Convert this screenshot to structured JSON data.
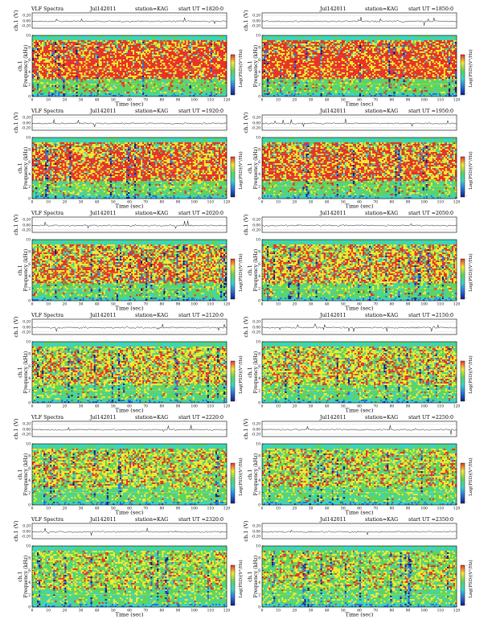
{
  "figure": {
    "panels": [
      {
        "label": "VLF Spectra",
        "date": "Jul142011",
        "station": "station=KAG",
        "start": "start  UT =1820:0",
        "red_density": 0.62,
        "yellow_density": 0.28
      },
      {
        "label": "",
        "date": "Jul142011",
        "station": "station=KAG",
        "start": "start  UT =1850:0",
        "red_density": 0.62,
        "yellow_density": 0.28
      },
      {
        "label": "VLF Spectra",
        "date": "Jul142011",
        "station": "station=KAG",
        "start": "start  UT =1920:0",
        "red_density": 0.52,
        "yellow_density": 0.32
      },
      {
        "label": "",
        "date": "Jul142011",
        "station": "station=KAG",
        "start": "start  UT =1950:0",
        "red_density": 0.5,
        "yellow_density": 0.33
      },
      {
        "label": "VLF Spectra",
        "date": "Jul142011",
        "station": "station=KAG",
        "start": "start  UT =2020:0",
        "red_density": 0.36,
        "yellow_density": 0.36
      },
      {
        "label": "",
        "date": "Jul142011",
        "station": "station=KAG",
        "start": "start  UT =2050:0",
        "red_density": 0.32,
        "yellow_density": 0.37
      },
      {
        "label": "VLF Spectra",
        "date": "Jul142011",
        "station": "station=KAG",
        "start": "start  UT =2120:0",
        "red_density": 0.22,
        "yellow_density": 0.38
      },
      {
        "label": "",
        "date": "Jul142011",
        "station": "station=KAG",
        "start": "start  UT =2150:0",
        "red_density": 0.22,
        "yellow_density": 0.38
      },
      {
        "label": "VLF Spectra",
        "date": "Jul142011",
        "station": "station=KAG",
        "start": "start  UT =2220:0",
        "red_density": 0.18,
        "yellow_density": 0.34
      },
      {
        "label": "",
        "date": "Jul142011",
        "station": "station=KAG",
        "start": "start  UT =2250:0",
        "red_density": 0.16,
        "yellow_density": 0.33
      },
      {
        "label": "VLF Spectra",
        "date": "Jul142011",
        "station": "station=KAG",
        "start": "start  UT =2320:0",
        "red_density": 0.12,
        "yellow_density": 0.3
      },
      {
        "label": "",
        "date": "Jul142011",
        "station": "station=KAG",
        "start": "start  UT =2350:0",
        "red_density": 0.12,
        "yellow_density": 0.3
      }
    ],
    "labels": {
      "ch_axis": "ch.1 (V)",
      "freq_axis_1": "ch.1",
      "freq_axis_2": "Frequency  (kHz)",
      "time_axis": "Time  (sec)",
      "colorbar": "Log(PSD)(V²/Hz)",
      "ch_ticks": [
        "0.20",
        "0.00",
        "-0.20"
      ],
      "freq_ticks": [
        "0",
        "2",
        "4",
        "6",
        "8",
        "10"
      ],
      "time_ticks": [
        "0",
        "10",
        "20",
        "30",
        "40",
        "50",
        "60",
        "70",
        "80",
        "90",
        "100",
        "110",
        "120"
      ],
      "cb_ticks": [
        "-",
        "-"
      ]
    },
    "colors": {
      "red": "#e8322a",
      "yellow": "#f2ea30",
      "green": "#5fd35c",
      "cyan": "#3ad4c8",
      "blue": "#2d6fe0",
      "navy": "#102080"
    }
  },
  "chart_data": {
    "type": "heatmap",
    "panel_count": 12,
    "x_range_sec": [
      0,
      120
    ],
    "freq_range_khz": [
      0,
      10
    ],
    "ch1_range_v": [
      -0.2,
      0.2
    ],
    "colormap": [
      "#102080",
      "#2d6fe0",
      "#3ad4c8",
      "#5fd35c",
      "#f2ea30",
      "#e8322a"
    ]
  }
}
